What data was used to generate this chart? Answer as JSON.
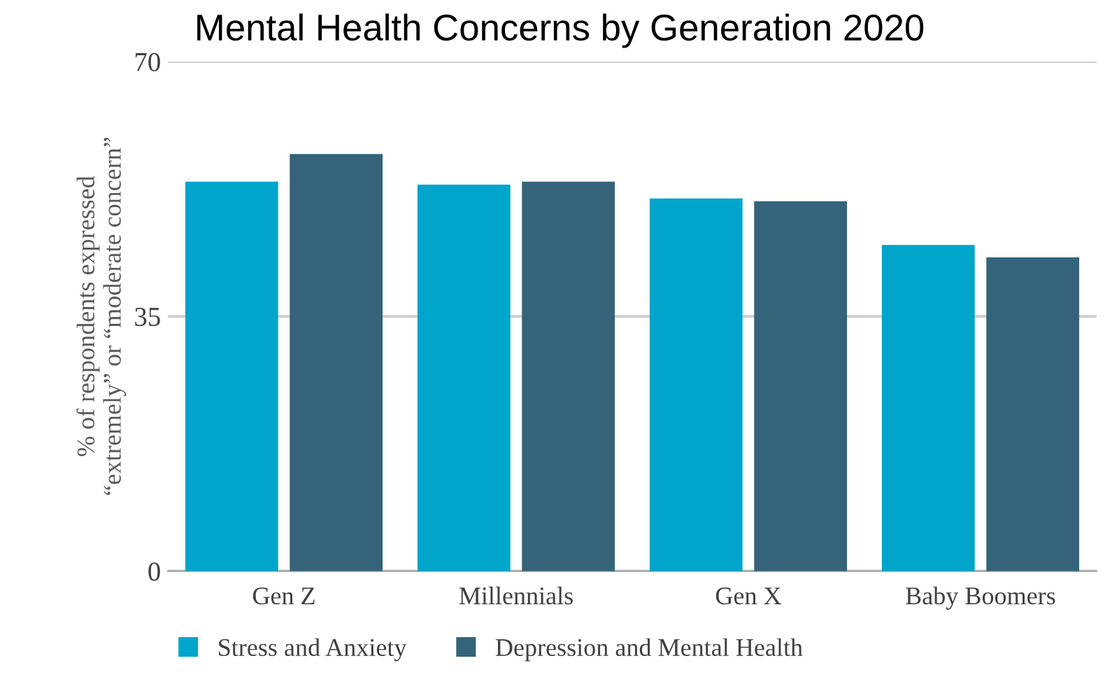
{
  "chart_data": {
    "type": "bar",
    "title": "Mental Health Concerns by Generation 2020",
    "ylabel": "% of respondents expressed\n“extremely” or “moderate concern”",
    "categories": [
      "Gen Z",
      "Millennials",
      "Gen X",
      "Baby Boomers"
    ],
    "series": [
      {
        "name": "Stress and Anxiety",
        "color": "#00a5cc",
        "values": [
          53.5,
          53.1,
          51.2,
          44.8
        ]
      },
      {
        "name": "Depression and Mental Health",
        "color": "#34637a",
        "values": [
          57.3,
          53.5,
          50.8,
          43.1
        ]
      }
    ],
    "ylim": [
      0,
      70
    ],
    "yticks": [
      0,
      35,
      70
    ],
    "grid": "y",
    "legend": "bottom"
  }
}
